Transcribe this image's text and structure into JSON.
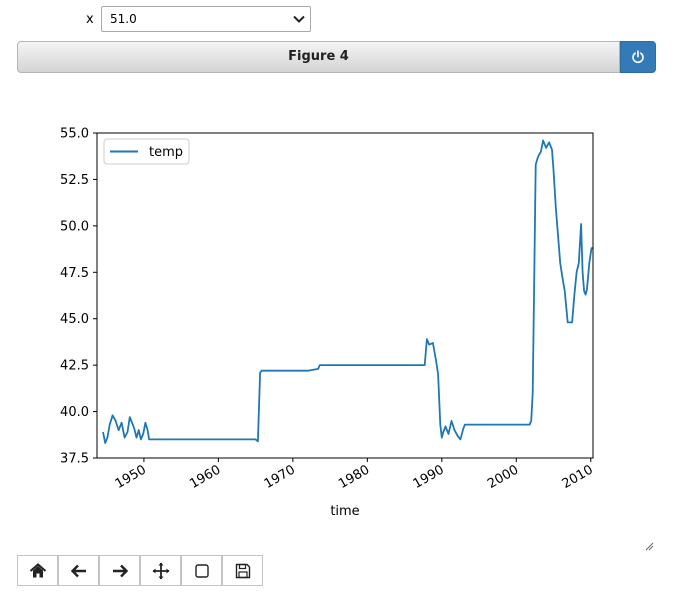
{
  "controls": {
    "x_label": "x",
    "x_value": "51.0"
  },
  "figure": {
    "title": "Figure 4"
  },
  "icons": {
    "power": "power-icon",
    "toolbar": [
      "home-icon",
      "arrow-left-icon",
      "arrow-right-icon",
      "move-icon",
      "zoom-rect-icon",
      "save-icon"
    ]
  },
  "chart_data": {
    "type": "line",
    "xlabel": "time",
    "ylabel": "",
    "xlim": [
      1943.7,
      2010.3
    ],
    "ylim": [
      37.5,
      55.0
    ],
    "x_ticks": [
      1950,
      1960,
      1970,
      1980,
      1990,
      2000,
      2010
    ],
    "y_ticks": [
      37.5,
      40.0,
      42.5,
      45.0,
      47.5,
      50.0,
      52.5,
      55.0
    ],
    "y_tick_labels": [
      "37.5",
      "40.0",
      "42.5",
      "45.0",
      "47.5",
      "50.0",
      "52.5",
      "55.0"
    ],
    "legend": "upper left",
    "grid": false,
    "series": [
      {
        "name": "temp",
        "color": "#1f77b4",
        "x": [
          1944.5,
          1944.8,
          1945.1,
          1945.4,
          1945.8,
          1946.2,
          1946.6,
          1947.0,
          1947.4,
          1947.8,
          1948.1,
          1948.4,
          1948.7,
          1949.0,
          1949.3,
          1949.6,
          1949.9,
          1950.2,
          1950.5,
          1950.7,
          1951.0,
          1955.0,
          1960.0,
          1965.0,
          1965.3,
          1965.6,
          1965.8,
          1968.0,
          1972.0,
          1973.4,
          1973.6,
          1980.0,
          1987.7,
          1988.0,
          1988.3,
          1988.8,
          1989.2,
          1989.5,
          1989.8,
          1990.0,
          1990.2,
          1990.5,
          1990.9,
          1991.3,
          1991.7,
          1992.1,
          1992.5,
          1992.9,
          1993.1,
          1993.3,
          1995.0,
          1998.0,
          2001.8,
          2002.0,
          2002.2,
          2002.4,
          2002.6,
          2002.9,
          2003.3,
          2003.6,
          2004.0,
          2004.4,
          2004.8,
          2005.0,
          2005.3,
          2005.6,
          2005.9,
          2006.2,
          2006.5,
          2006.9,
          2007.5,
          2007.8,
          2008.1,
          2008.4,
          2008.7,
          2008.9,
          2009.1,
          2009.3,
          2009.5,
          2009.8,
          2010.1,
          2010.3
        ],
        "values": [
          38.9,
          38.3,
          38.6,
          39.3,
          39.8,
          39.5,
          39.0,
          39.4,
          38.6,
          38.9,
          39.7,
          39.4,
          39.1,
          38.6,
          39.0,
          38.5,
          38.8,
          39.4,
          39.0,
          38.5,
          38.5,
          38.5,
          38.5,
          38.5,
          38.4,
          42.1,
          42.2,
          42.2,
          42.2,
          42.3,
          42.5,
          42.5,
          42.5,
          43.9,
          43.6,
          43.7,
          42.8,
          42.0,
          39.3,
          38.6,
          38.9,
          39.2,
          38.8,
          39.5,
          39.0,
          38.7,
          38.5,
          39.1,
          39.3,
          39.3,
          39.3,
          39.3,
          39.3,
          39.5,
          41.0,
          47.0,
          53.3,
          53.7,
          54.0,
          54.6,
          54.2,
          54.5,
          54.1,
          53.0,
          51.0,
          49.5,
          48.0,
          47.2,
          46.5,
          44.8,
          44.8,
          46.3,
          47.5,
          48.0,
          50.1,
          47.5,
          46.5,
          46.3,
          46.6,
          48.0,
          48.8,
          48.8
        ]
      }
    ]
  }
}
